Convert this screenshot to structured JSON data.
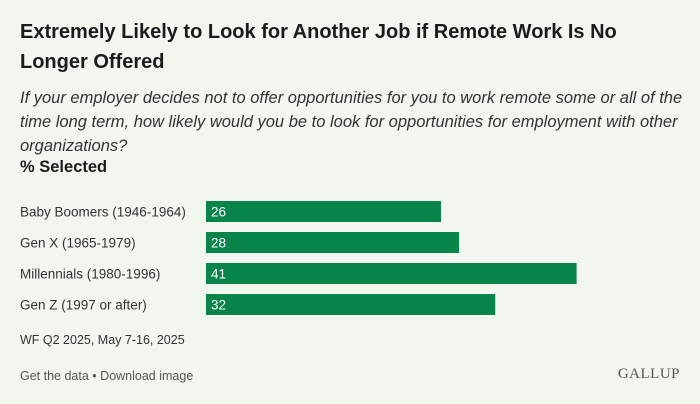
{
  "header": {
    "title": "Extremely Likely to Look for Another Job if Remote Work Is No Longer Offered",
    "subtitle": "If your employer decides not to offer opportunities for you to work remote some or all of the time long term, how likely would you be to look for opportunities for employment with other organizations?",
    "measure": "% Selected"
  },
  "chart_data": {
    "type": "bar",
    "orientation": "horizontal",
    "title": "Extremely Likely to Look for Another Job if Remote Work Is No Longer Offered",
    "xlabel": "% Selected",
    "ylabel": "",
    "categories": [
      "Baby Boomers (1946-1964)",
      "Gen X (1965-1979)",
      "Millennials (1980-1996)",
      "Gen Z (1997 or after)"
    ],
    "values": [
      26,
      28,
      41,
      32
    ],
    "xlim": [
      0,
      52
    ],
    "bar_color": "#06844a",
    "label_color": "#ffffff"
  },
  "footer": {
    "source": "WF Q2 2025, May 7-16, 2025",
    "get_data": "Get the data",
    "separator": "•",
    "download": "Download image",
    "logo": "GALLUP"
  },
  "colors": {
    "background": "#f1f6ef",
    "bar": "#06844a"
  }
}
